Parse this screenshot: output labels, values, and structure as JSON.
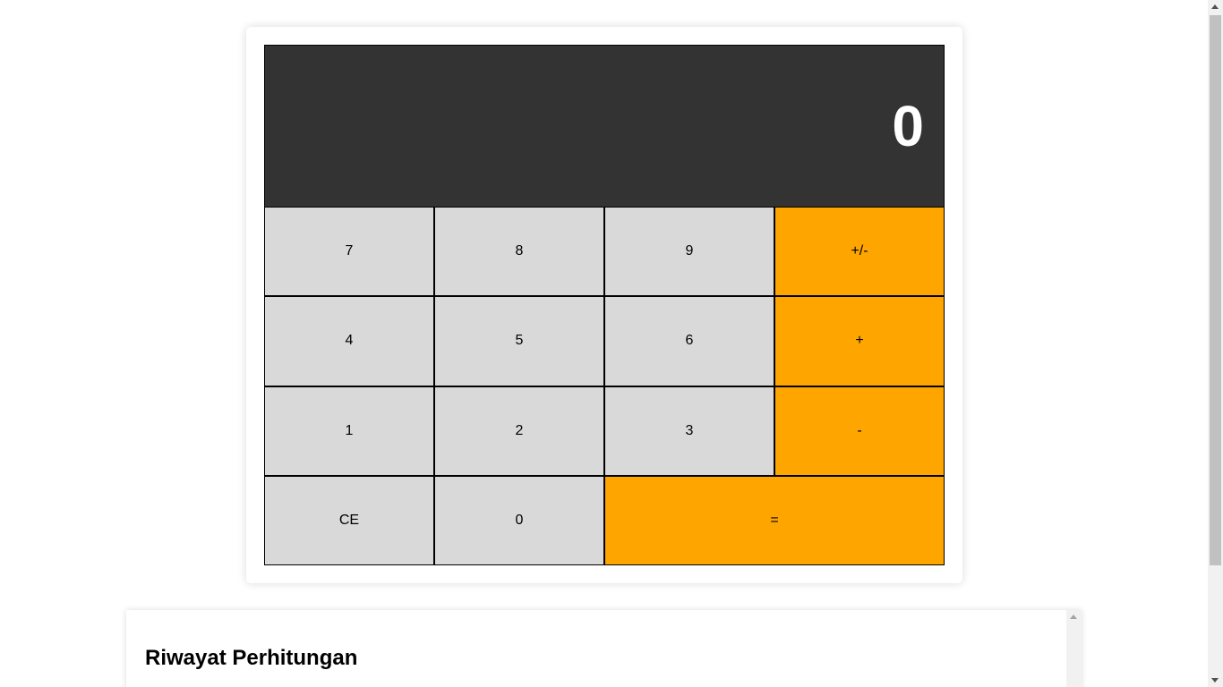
{
  "calculator": {
    "display_value": "0",
    "keys": {
      "seven": "7",
      "eight": "8",
      "nine": "9",
      "sign": "+/-",
      "four": "4",
      "five": "5",
      "six": "6",
      "plus": "+",
      "one": "1",
      "two": "2",
      "three": "3",
      "minus": "-",
      "clear": "CE",
      "zero": "0",
      "equals": "="
    },
    "colors": {
      "display_bg": "#333333",
      "key_bg": "#d9d9d9",
      "operator_bg": "#ffa500"
    }
  },
  "history": {
    "title": "Riwayat Perhitungan"
  }
}
